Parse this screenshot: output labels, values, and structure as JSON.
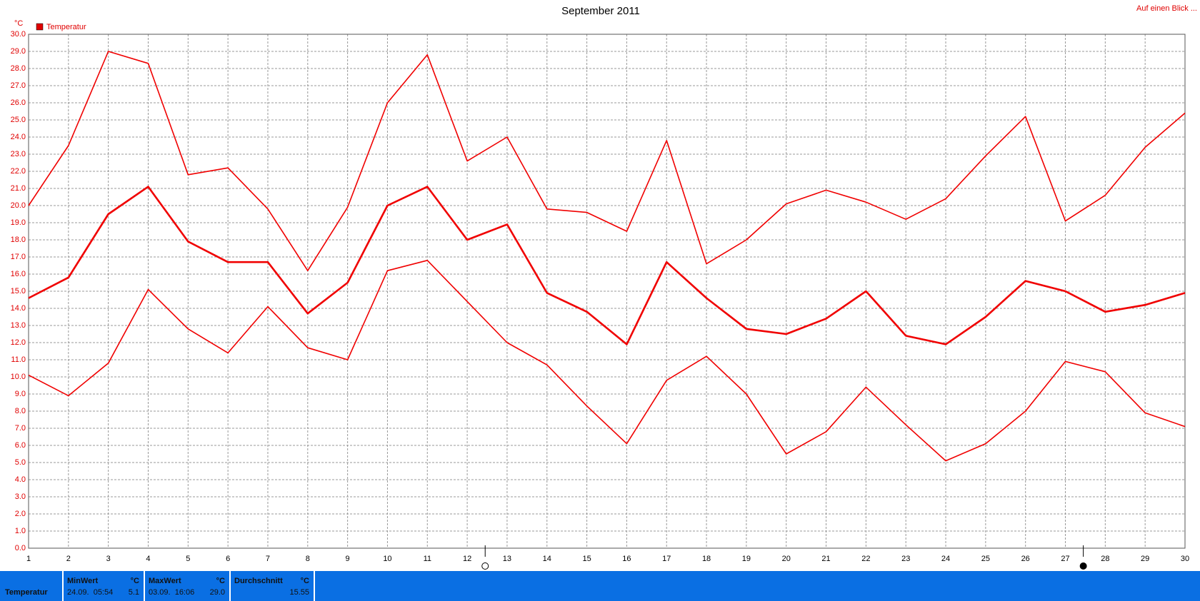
{
  "chart_data": {
    "type": "line",
    "title": "September 2011",
    "y_unit": "°C",
    "legend": "Temperatur",
    "link": "Auf einen Blick ...",
    "x": [
      1,
      2,
      3,
      4,
      5,
      6,
      7,
      8,
      9,
      10,
      11,
      12,
      13,
      14,
      15,
      16,
      17,
      18,
      19,
      20,
      21,
      22,
      23,
      24,
      25,
      26,
      27,
      28,
      29,
      30
    ],
    "series": [
      {
        "color": "#f00000",
        "values": [
          20.0,
          23.5,
          29.0,
          28.3,
          21.8,
          22.2,
          19.8,
          16.2,
          19.9,
          26.0,
          28.8,
          22.6,
          24.0,
          19.8,
          19.6,
          18.5,
          23.8,
          16.6,
          18.0,
          20.1,
          20.9,
          20.2,
          19.2,
          20.4,
          22.9,
          25.2,
          19.1,
          20.6,
          23.4,
          25.4
        ]
      },
      {
        "color": "#f00000",
        "values": [
          14.6,
          15.8,
          19.5,
          21.1,
          17.9,
          16.7,
          16.7,
          13.7,
          15.5,
          20.0,
          21.1,
          18.0,
          18.9,
          14.9,
          13.8,
          11.9,
          16.7,
          14.6,
          12.8,
          12.5,
          13.4,
          15.0,
          12.4,
          11.9,
          13.5,
          15.6,
          15.0,
          13.8,
          14.2,
          14.9
        ]
      },
      {
        "color": "#f00000",
        "values": [
          10.1,
          8.9,
          10.8,
          15.1,
          12.8,
          11.4,
          14.1,
          11.7,
          11.0,
          16.2,
          16.8,
          14.4,
          12.0,
          10.7,
          8.3,
          6.1,
          9.8,
          11.2,
          9.0,
          5.5,
          6.8,
          9.4,
          7.2,
          5.1,
          6.1,
          8.0,
          10.9,
          10.3,
          7.9,
          7.1
        ]
      }
    ],
    "xlim": [
      1,
      30
    ],
    "ylim": [
      0,
      30
    ],
    "xticks": [
      1,
      2,
      3,
      4,
      5,
      6,
      7,
      8,
      9,
      10,
      11,
      12,
      13,
      14,
      15,
      16,
      17,
      18,
      19,
      20,
      21,
      22,
      23,
      24,
      25,
      26,
      27,
      28,
      29,
      30
    ],
    "yticks": [
      {
        "value": 0,
        "label": "0.0"
      },
      {
        "value": 1,
        "label": "1.0"
      },
      {
        "value": 2,
        "label": "2.0"
      },
      {
        "value": 3,
        "label": "3.0"
      },
      {
        "value": 4,
        "label": "4.0"
      },
      {
        "value": 5,
        "label": "5.0"
      },
      {
        "value": 6,
        "label": "6.0"
      },
      {
        "value": 7,
        "label": "7.0"
      },
      {
        "value": 8,
        "label": "8.0"
      },
      {
        "value": 9,
        "label": "9.0"
      },
      {
        "value": 10,
        "label": "10.0"
      },
      {
        "value": 11,
        "label": "11.0"
      },
      {
        "value": 12,
        "label": "12.0"
      },
      {
        "value": 13,
        "label": "13.0"
      },
      {
        "value": 14,
        "label": "14.0"
      },
      {
        "value": 15,
        "label": "15.0"
      },
      {
        "value": 16,
        "label": "16.0"
      },
      {
        "value": 17,
        "label": "17.0"
      },
      {
        "value": 18,
        "label": "18.0"
      },
      {
        "value": 19,
        "label": "19.0"
      },
      {
        "value": 20,
        "label": "20.0"
      },
      {
        "value": 21,
        "label": "21.0"
      },
      {
        "value": 22,
        "label": "22.0"
      },
      {
        "value": 23,
        "label": "23.0"
      },
      {
        "value": 24,
        "label": "24.0"
      },
      {
        "value": 25,
        "label": "25.0"
      },
      {
        "value": 26,
        "label": "26.0"
      },
      {
        "value": 27,
        "label": "27.0"
      },
      {
        "value": 28,
        "label": "28.0"
      },
      {
        "value": 29,
        "label": "29.0"
      },
      {
        "value": 30,
        "label": "30.0"
      }
    ],
    "grid": true,
    "moon_markers_x": [
      12.45,
      27.45
    ]
  },
  "summary": {
    "label": "Temperatur",
    "columns": [
      {
        "title": "MinWert",
        "unit": "°C",
        "time": "24.09.  05:54",
        "value": "5.1"
      },
      {
        "title": "MaxWert",
        "unit": "°C",
        "time": "03.09.  16:06",
        "value": "29.0"
      },
      {
        "title": "Durchschnitt",
        "unit": "°C",
        "value": "15.55"
      }
    ]
  }
}
